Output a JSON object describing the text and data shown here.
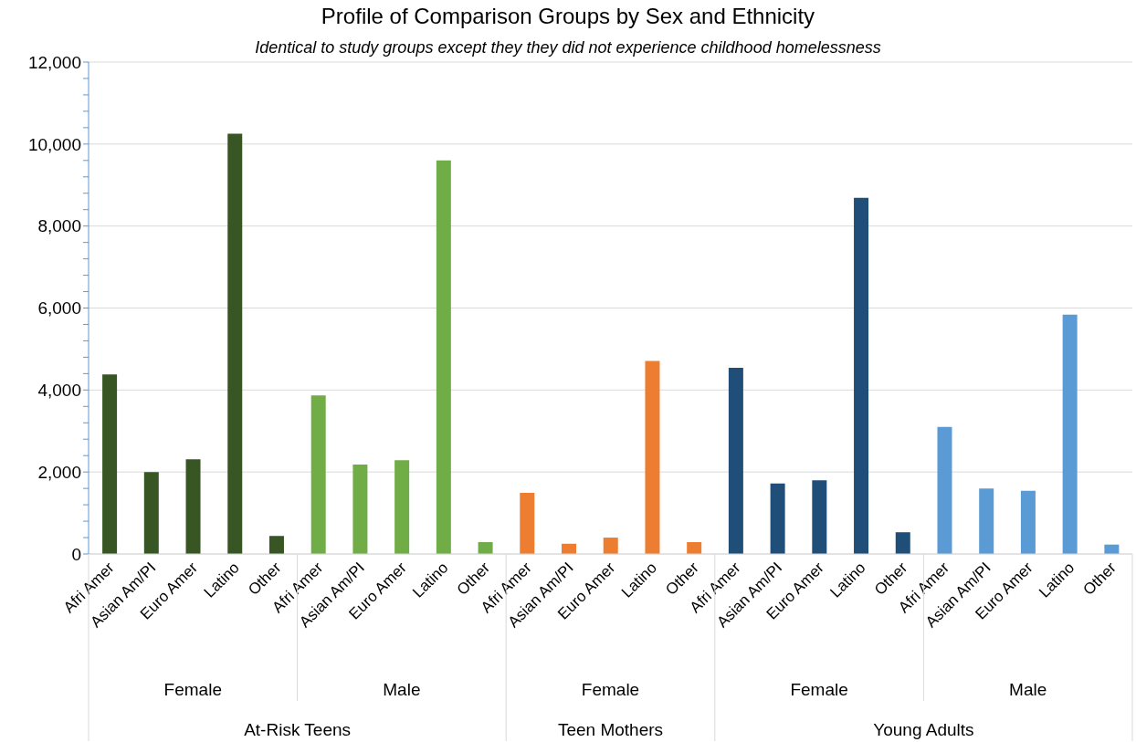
{
  "chart_data": {
    "type": "bar",
    "title": "Profile of Comparison Groups by Sex and Ethnicity",
    "subtitle": "Identical to study groups except they they did not experience childhood homelessness",
    "categories": [
      "Afri Amer",
      "Asian Am/PI",
      "Euro Amer",
      "Latino",
      "Other",
      "Afri Amer",
      "Asian Am/PI",
      "Euro Amer",
      "Latino",
      "Other",
      "Afri Amer",
      "Asian Am/PI",
      "Euro Amer",
      "Latino",
      "Other",
      "Afri Amer",
      "Asian Am/PI",
      "Euro Amer",
      "Latino",
      "Other",
      "Afri Amer",
      "Asian Am/PI",
      "Euro Amer",
      "Latino",
      "Other"
    ],
    "values": [
      4380,
      2000,
      2310,
      10250,
      440,
      3870,
      2180,
      2290,
      9600,
      290,
      1490,
      250,
      400,
      4710,
      290,
      4540,
      1720,
      1800,
      8690,
      530,
      3100,
      1600,
      1540,
      5840,
      230
    ],
    "colors": [
      "#375623",
      "#375623",
      "#375623",
      "#375623",
      "#375623",
      "#70ad47",
      "#70ad47",
      "#70ad47",
      "#70ad47",
      "#70ad47",
      "#ed7d31",
      "#ed7d31",
      "#ed7d31",
      "#ed7d31",
      "#ed7d31",
      "#1f4e79",
      "#1f4e79",
      "#1f4e79",
      "#1f4e79",
      "#1f4e79",
      "#5b9bd5",
      "#5b9bd5",
      "#5b9bd5",
      "#5b9bd5",
      "#5b9bd5"
    ],
    "ylim": [
      0,
      12000
    ],
    "yticks": [
      0,
      {
        "value": 400,
        "label": null
      },
      {
        "value": 800,
        "label": null
      },
      {
        "value": 1200,
        "label": null
      },
      {
        "value": 1600,
        "label": null
      },
      {
        "value": 2000,
        "label": "2,000"
      },
      {
        "value": 2400,
        "label": null
      },
      {
        "value": 2800,
        "label": null
      },
      {
        "value": 3200,
        "label": null
      },
      {
        "value": 3600,
        "label": null
      },
      {
        "value": 4000,
        "label": "4,000"
      },
      {
        "value": 4400,
        "label": null
      },
      {
        "value": 4800,
        "label": null
      },
      {
        "value": 5200,
        "label": null
      },
      {
        "value": 5600,
        "label": null
      },
      {
        "value": 6000,
        "label": "6,000"
      },
      {
        "value": 6400,
        "label": null
      },
      {
        "value": 6800,
        "label": null
      },
      {
        "value": 7200,
        "label": null
      },
      {
        "value": 7600,
        "label": null
      },
      {
        "value": 8000,
        "label": "8,000"
      },
      {
        "value": 8400,
        "label": null
      },
      {
        "value": 8800,
        "label": null
      },
      {
        "value": 9200,
        "label": null
      },
      {
        "value": 9600,
        "label": null
      },
      {
        "value": 10000,
        "label": "10,000"
      },
      {
        "value": 10400,
        "label": null
      },
      {
        "value": 10800,
        "label": null
      },
      {
        "value": 11200,
        "label": null
      },
      {
        "value": 11600,
        "label": null
      },
      {
        "value": 12000,
        "label": "12,000"
      }
    ],
    "grid": "y",
    "legend": false,
    "annotations": [
      "Female",
      "Male",
      "Female",
      "Female",
      "Male",
      "At-Risk Teens",
      "Teen Mothers",
      "Young Adults"
    ]
  }
}
